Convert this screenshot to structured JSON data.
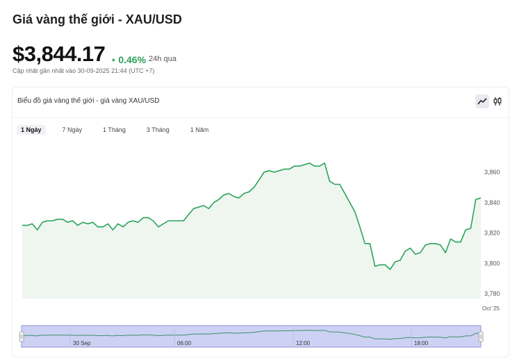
{
  "header": {
    "title": "Giá vàng thế giới - XAU/USD",
    "price": "$3,844.17",
    "change": "0.46%",
    "period": "24h qua",
    "updated": "Cập nhật gần nhất vào 30-09-2025 21:44 (UTC +7)"
  },
  "card": {
    "title": "Biểu đồ giá vàng thế giới - giá vàng XAU/USD",
    "tools": [
      "line-chart-icon",
      "candlestick-icon"
    ]
  },
  "range_tabs": [
    {
      "label": "1 Ngày",
      "active": true
    },
    {
      "label": "7 Ngày",
      "active": false
    },
    {
      "label": "1 Tháng",
      "active": false
    },
    {
      "label": "3 Tháng",
      "active": false
    },
    {
      "label": "1 Năm",
      "active": false
    }
  ],
  "colors": {
    "line": "#2ba25a",
    "area": "#eef6ef",
    "navigator_mask": "#cdd1f3",
    "navigator_border": "#8c92d6"
  },
  "chart_data": {
    "type": "area",
    "ylim": [
      3778,
      3870
    ],
    "y_ticks": [
      3780,
      3800,
      3820,
      3840,
      3860
    ],
    "y_tick_labels": [
      "3,780",
      "3,800",
      "3,820",
      "3,840",
      "3,860"
    ],
    "x_end_label": "Oct '25",
    "navigator_labels": [
      "30 Sep",
      "06:00",
      "12:00",
      "18:00"
    ],
    "values": [
      3825,
      3825,
      3826,
      3822,
      3827,
      3828,
      3828,
      3829,
      3829,
      3827,
      3828,
      3825,
      3827,
      3826,
      3827,
      3824,
      3824,
      3826,
      3822,
      3826,
      3824,
      3827,
      3828,
      3827,
      3830,
      3830,
      3828,
      3824,
      3826,
      3828,
      3828,
      3828,
      3828,
      3832,
      3836,
      3837,
      3838,
      3836,
      3840,
      3842,
      3845,
      3846,
      3844,
      3843,
      3846,
      3847,
      3850,
      3855,
      3860,
      3861,
      3860,
      3861,
      3862,
      3862,
      3864,
      3864,
      3865,
      3866,
      3864,
      3864,
      3866,
      3854,
      3852,
      3852,
      3846,
      3840,
      3834,
      3824,
      3813,
      3813,
      3798,
      3799,
      3799,
      3796,
      3801,
      3802,
      3808,
      3810,
      3806,
      3807,
      3812,
      3813,
      3813,
      3812,
      3807,
      3816,
      3814,
      3814,
      3822,
      3823,
      3842,
      3843
    ]
  }
}
